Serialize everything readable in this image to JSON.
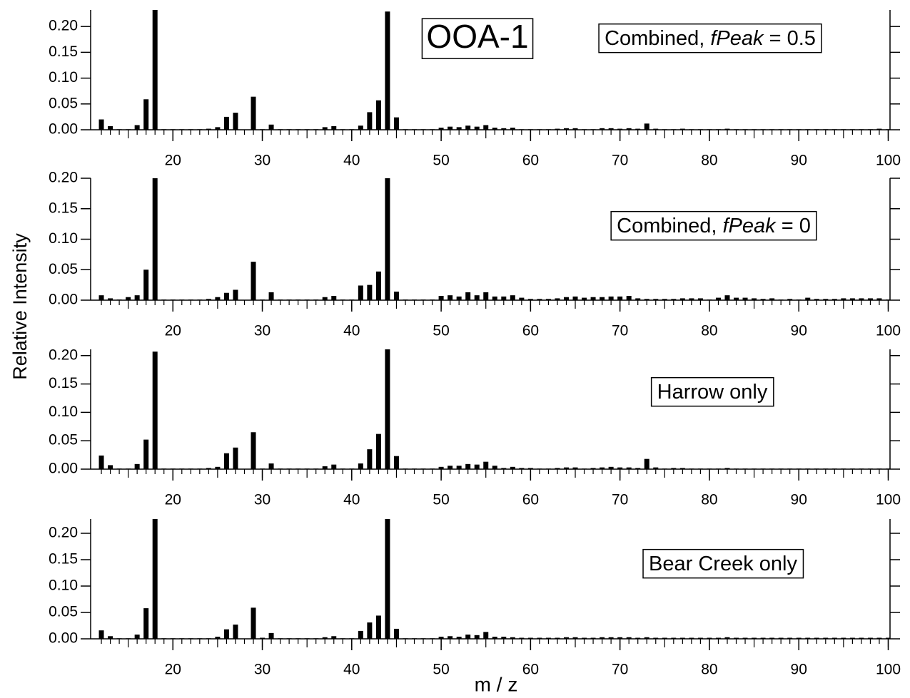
{
  "title": "OOA-1",
  "x_label": "m / z",
  "y_label": "Relative Intensity",
  "chart_data": [
    {
      "type": "bar",
      "color": "#000000",
      "annotation": [
        {
          "text": "Combined, "
        },
        {
          "text": "fPeak",
          "italic": true
        },
        {
          "text": " = 0.5"
        }
      ],
      "xlim": [
        10.8,
        100.2
      ],
      "xticks": [
        20,
        30,
        40,
        50,
        60,
        70,
        80,
        90,
        100
      ],
      "ylim": [
        0,
        0.232
      ],
      "yticks": [
        {
          "value": 0,
          "label": "0.00"
        },
        {
          "value": 0.05,
          "label": "0.05"
        },
        {
          "value": 0.1,
          "label": "0.10"
        },
        {
          "value": 0.15,
          "label": "0.15"
        },
        {
          "value": 0.2,
          "label": "0.20"
        }
      ],
      "x": [
        12,
        13,
        14,
        15,
        16,
        17,
        18,
        19,
        20,
        21,
        22,
        23,
        24,
        25,
        26,
        27,
        28,
        29,
        30,
        31,
        32,
        33,
        34,
        35,
        36,
        37,
        38,
        39,
        40,
        41,
        42,
        43,
        44,
        45,
        46,
        47,
        48,
        49,
        50,
        51,
        52,
        53,
        54,
        55,
        56,
        57,
        58,
        59,
        60,
        61,
        62,
        63,
        64,
        65,
        66,
        67,
        68,
        69,
        70,
        71,
        72,
        73,
        74,
        75,
        76,
        77,
        78,
        79,
        80,
        81,
        82,
        83,
        84,
        85,
        86,
        87,
        88,
        89,
        90,
        91,
        92,
        93,
        94,
        95,
        96,
        97,
        98,
        99,
        100
      ],
      "values": [
        0.02,
        0.007,
        0.001,
        0.001,
        0.009,
        0.059,
        0.24,
        0.001,
        0.001,
        0.001,
        0.001,
        0.001,
        0.002,
        0.005,
        0.025,
        0.033,
        0,
        0.064,
        0.001,
        0.01,
        0.001,
        0.001,
        0.001,
        0.001,
        0.001,
        0.005,
        0.007,
        0.001,
        0.001,
        0.008,
        0.034,
        0.057,
        0.229,
        0.024,
        0.001,
        0.001,
        0.001,
        0.001,
        0.004,
        0.006,
        0.005,
        0.008,
        0.006,
        0.009,
        0.004,
        0.003,
        0.004,
        0.001,
        0.001,
        0.001,
        0.001,
        0.002,
        0.003,
        0.003,
        0.001,
        0.001,
        0.003,
        0.003,
        0.002,
        0.003,
        0.002,
        0.012,
        0.002,
        0.001,
        0.001,
        0.002,
        0.001,
        0.001,
        0.001,
        0.001,
        0.002,
        0.001,
        0.001,
        0.001,
        0.001,
        0.001,
        0.001,
        0.001,
        0.001,
        0.001,
        0.001,
        0.001,
        0.001,
        0.001,
        0.001,
        0.001,
        0.001,
        0.002,
        0.001
      ]
    },
    {
      "type": "bar",
      "color": "#000000",
      "annotation": [
        {
          "text": "Combined, "
        },
        {
          "text": "fPeak",
          "italic": true
        },
        {
          "text": " = 0"
        }
      ],
      "xlim": [
        10.8,
        100.2
      ],
      "xticks": [
        20,
        30,
        40,
        50,
        60,
        70,
        80,
        90,
        100
      ],
      "ylim": [
        0,
        0.2
      ],
      "yticks": [
        {
          "value": 0,
          "label": "0.00"
        },
        {
          "value": 0.05,
          "label": "0.05"
        },
        {
          "value": 0.1,
          "label": "0.10"
        },
        {
          "value": 0.15,
          "label": "0.15"
        },
        {
          "value": 0.2,
          "label": "0.20"
        }
      ],
      "x": [
        12,
        13,
        14,
        15,
        16,
        17,
        18,
        19,
        20,
        21,
        22,
        23,
        24,
        25,
        26,
        27,
        28,
        29,
        30,
        31,
        32,
        33,
        34,
        35,
        36,
        37,
        38,
        39,
        40,
        41,
        42,
        43,
        44,
        45,
        46,
        47,
        48,
        49,
        50,
        51,
        52,
        53,
        54,
        55,
        56,
        57,
        58,
        59,
        60,
        61,
        62,
        63,
        64,
        65,
        66,
        67,
        68,
        69,
        70,
        71,
        72,
        73,
        74,
        75,
        76,
        77,
        78,
        79,
        80,
        81,
        82,
        83,
        84,
        85,
        86,
        87,
        88,
        89,
        90,
        91,
        92,
        93,
        94,
        95,
        96,
        97,
        98,
        99,
        100
      ],
      "values": [
        0.008,
        0.003,
        0.001,
        0.005,
        0.008,
        0.05,
        0.22,
        0.001,
        0.001,
        0.001,
        0.001,
        0.001,
        0.002,
        0.005,
        0.012,
        0.017,
        0,
        0.063,
        0.001,
        0.013,
        0.001,
        0.001,
        0.001,
        0.001,
        0.001,
        0.005,
        0.007,
        0.001,
        0.001,
        0.024,
        0.025,
        0.047,
        0.22,
        0.014,
        0.001,
        0.001,
        0.001,
        0.001,
        0.007,
        0.008,
        0.006,
        0.013,
        0.008,
        0.013,
        0.006,
        0.006,
        0.008,
        0.004,
        0.002,
        0.002,
        0.002,
        0.003,
        0.005,
        0.006,
        0.004,
        0.005,
        0.005,
        0.006,
        0.006,
        0.007,
        0.003,
        0.002,
        0.002,
        0.002,
        0.002,
        0.003,
        0.003,
        0.003,
        0.001,
        0.004,
        0.008,
        0.004,
        0.004,
        0.003,
        0.002,
        0.003,
        0.001,
        0.002,
        0.001,
        0.004,
        0.002,
        0.002,
        0.002,
        0.003,
        0.003,
        0.003,
        0.003,
        0.003,
        0.001
      ]
    },
    {
      "type": "bar",
      "color": "#000000",
      "annotation": [
        {
          "text": "Harrow only"
        }
      ],
      "xlim": [
        10.8,
        100.2
      ],
      "xticks": [
        20,
        30,
        40,
        50,
        60,
        70,
        80,
        90,
        100
      ],
      "ylim": [
        0,
        0.211
      ],
      "yticks": [
        {
          "value": 0,
          "label": "0.00"
        },
        {
          "value": 0.05,
          "label": "0.05"
        },
        {
          "value": 0.1,
          "label": "0.10"
        },
        {
          "value": 0.15,
          "label": "0.15"
        },
        {
          "value": 0.2,
          "label": "0.20"
        }
      ],
      "x": [
        12,
        13,
        14,
        15,
        16,
        17,
        18,
        19,
        20,
        21,
        22,
        23,
        24,
        25,
        26,
        27,
        28,
        29,
        30,
        31,
        32,
        33,
        34,
        35,
        36,
        37,
        38,
        39,
        40,
        41,
        42,
        43,
        44,
        45,
        46,
        47,
        48,
        49,
        50,
        51,
        52,
        53,
        54,
        55,
        56,
        57,
        58,
        59,
        60,
        61,
        62,
        63,
        64,
        65,
        66,
        67,
        68,
        69,
        70,
        71,
        72,
        73,
        74,
        75,
        76,
        77,
        78,
        79,
        80,
        81,
        82,
        83,
        84,
        85,
        86,
        87,
        88,
        89,
        90,
        91,
        92,
        93,
        94,
        95,
        96,
        97,
        98,
        99,
        100
      ],
      "values": [
        0.024,
        0.007,
        0.001,
        0.001,
        0.009,
        0.052,
        0.207,
        0.001,
        0.001,
        0.001,
        0.001,
        0.001,
        0.002,
        0.004,
        0.028,
        0.038,
        0,
        0.065,
        0.001,
        0.01,
        0.001,
        0.001,
        0.001,
        0.001,
        0.001,
        0.005,
        0.008,
        0.001,
        0.001,
        0.01,
        0.035,
        0.062,
        0.215,
        0.023,
        0.001,
        0.001,
        0.001,
        0.001,
        0.004,
        0.006,
        0.006,
        0.009,
        0.008,
        0.013,
        0.006,
        0.002,
        0.004,
        0.002,
        0.002,
        0.001,
        0.001,
        0.002,
        0.003,
        0.003,
        0.001,
        0.002,
        0.003,
        0.004,
        0.003,
        0.003,
        0.002,
        0.018,
        0.003,
        0.001,
        0.002,
        0.002,
        0.001,
        0.001,
        0.001,
        0.001,
        0.002,
        0.001,
        0.001,
        0.001,
        0.001,
        0.001,
        0.001,
        0.001,
        0.001,
        0.001,
        0.001,
        0.001,
        0.001,
        0.001,
        0.001,
        0.001,
        0.001,
        0.001,
        0.001
      ]
    },
    {
      "type": "bar",
      "color": "#000000",
      "annotation": [
        {
          "text": "Bear Creek only"
        }
      ],
      "xlim": [
        10.8,
        100.2
      ],
      "xticks": [
        20,
        30,
        40,
        50,
        60,
        70,
        80,
        90,
        100
      ],
      "ylim": [
        0,
        0.227
      ],
      "yticks": [
        {
          "value": 0,
          "label": "0.00"
        },
        {
          "value": 0.05,
          "label": "0.05"
        },
        {
          "value": 0.1,
          "label": "0.10"
        },
        {
          "value": 0.15,
          "label": "0.15"
        },
        {
          "value": 0.2,
          "label": "0.20"
        }
      ],
      "x": [
        12,
        13,
        14,
        15,
        16,
        17,
        18,
        19,
        20,
        21,
        22,
        23,
        24,
        25,
        26,
        27,
        28,
        29,
        30,
        31,
        32,
        33,
        34,
        35,
        36,
        37,
        38,
        39,
        40,
        41,
        42,
        43,
        44,
        45,
        46,
        47,
        48,
        49,
        50,
        51,
        52,
        53,
        54,
        55,
        56,
        57,
        58,
        59,
        60,
        61,
        62,
        63,
        64,
        65,
        66,
        67,
        68,
        69,
        70,
        71,
        72,
        73,
        74,
        75,
        76,
        77,
        78,
        79,
        80,
        81,
        82,
        83,
        84,
        85,
        86,
        87,
        88,
        89,
        90,
        91,
        92,
        93,
        94,
        95,
        96,
        97,
        98,
        99,
        100
      ],
      "values": [
        0.016,
        0.005,
        0.001,
        0.001,
        0.008,
        0.058,
        0.24,
        0.001,
        0.001,
        0.001,
        0.001,
        0.001,
        0.001,
        0.004,
        0.018,
        0.027,
        0,
        0.059,
        0.002,
        0.011,
        0.001,
        0.001,
        0.001,
        0.001,
        0.001,
        0.003,
        0.005,
        0.001,
        0.001,
        0.015,
        0.031,
        0.044,
        0.24,
        0.019,
        0.001,
        0.001,
        0.001,
        0.001,
        0.004,
        0.005,
        0.004,
        0.008,
        0.007,
        0.013,
        0.004,
        0.004,
        0.003,
        0.002,
        0.002,
        0.002,
        0.002,
        0.002,
        0.003,
        0.003,
        0.002,
        0.002,
        0.003,
        0.003,
        0.003,
        0.003,
        0.002,
        0.003,
        0.002,
        0.002,
        0.002,
        0.002,
        0.002,
        0.002,
        0.002,
        0.002,
        0.003,
        0.002,
        0.002,
        0.002,
        0.002,
        0.002,
        0.002,
        0.002,
        0.002,
        0.002,
        0.002,
        0.002,
        0.002,
        0.002,
        0.002,
        0.002,
        0.002,
        0.002,
        0.002
      ]
    }
  ]
}
